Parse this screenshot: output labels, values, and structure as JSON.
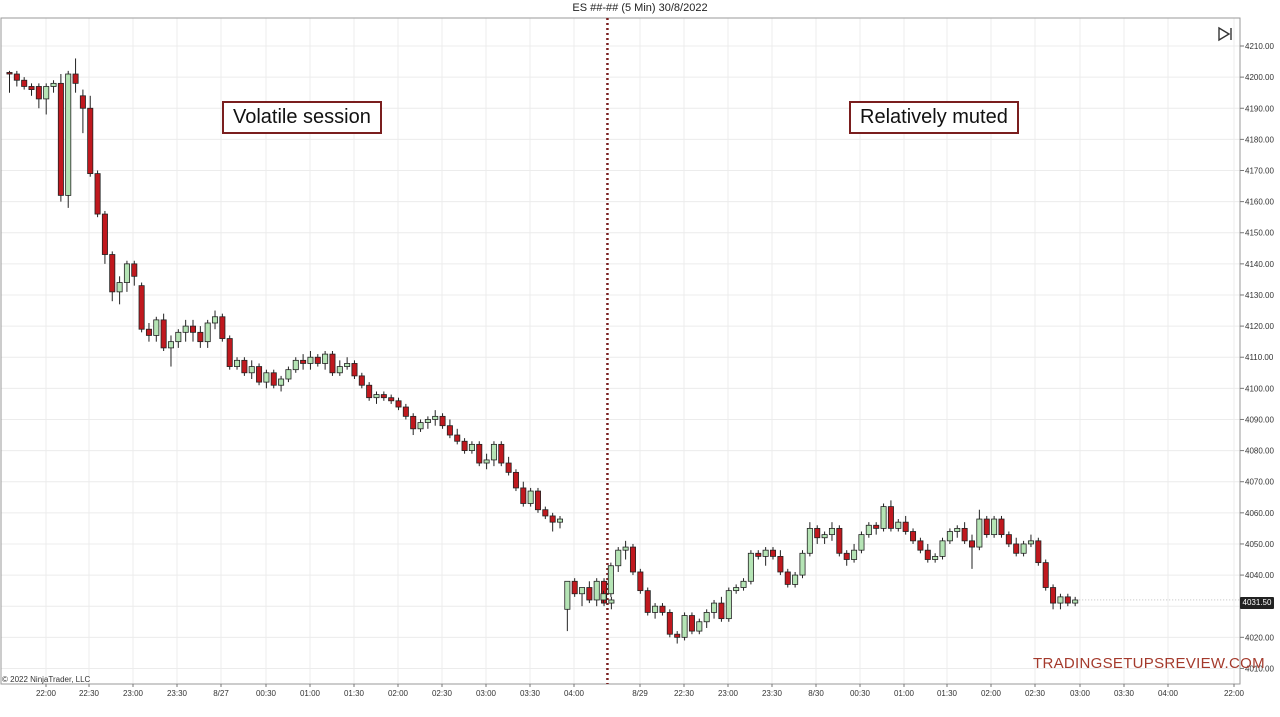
{
  "chart_data": {
    "type": "candlestick",
    "title": "ES ##-## (5 Min)  30/8/2022",
    "y_axis": {
      "range": [
        4005,
        4219
      ],
      "ticks": [
        4010,
        4020,
        4030,
        4040,
        4050,
        4060,
        4070,
        4080,
        4090,
        4100,
        4110,
        4120,
        4130,
        4140,
        4150,
        4160,
        4170,
        4180,
        4190,
        4200,
        4210
      ],
      "tick_format": ".00",
      "position": "right"
    },
    "x_axis": {
      "tick_labels": [
        "22:00",
        "22:30",
        "23:00",
        "23:30",
        "8/27",
        "00:30",
        "01:00",
        "01:30",
        "02:00",
        "02:30",
        "03:00",
        "03:30",
        "04:00",
        "8/29",
        "22:30",
        "23:00",
        "23:30",
        "8/30",
        "00:30",
        "01:00",
        "01:30",
        "02:00",
        "02:30",
        "03:00",
        "03:30",
        "04:00",
        "22:00"
      ]
    },
    "grid": true,
    "session_break_after_bar": 83,
    "up_color": "#b5e4b5",
    "down_color": "#c0181e",
    "candles": [
      [
        4201.5,
        4202,
        4195,
        4201
      ],
      [
        4201,
        4202,
        4197,
        4199
      ],
      [
        4199,
        4200,
        4196,
        4197
      ],
      [
        4197,
        4198,
        4194,
        4196
      ],
      [
        4197,
        4198,
        4190,
        4193
      ],
      [
        4193,
        4198,
        4188,
        4197
      ],
      [
        4197,
        4199,
        4195,
        4198
      ],
      [
        4198,
        4201,
        4160,
        4162
      ],
      [
        4162,
        4202,
        4158,
        4201
      ],
      [
        4201,
        4206,
        4195,
        4198
      ],
      [
        4194,
        4196,
        4182,
        4190
      ],
      [
        4190,
        4194,
        4168,
        4169
      ],
      [
        4169,
        4170,
        4155,
        4156
      ],
      [
        4156,
        4157,
        4140,
        4143
      ],
      [
        4143,
        4144,
        4128,
        4131
      ],
      [
        4131,
        4136,
        4127,
        4134
      ],
      [
        4134,
        4141,
        4131,
        4140
      ],
      [
        4140,
        4141,
        4133,
        4136
      ],
      [
        4133,
        4134,
        4118,
        4119
      ],
      [
        4119,
        4121,
        4115,
        4117
      ],
      [
        4117,
        4123,
        4115,
        4122
      ],
      [
        4122,
        4124,
        4112,
        4113
      ],
      [
        4113,
        4117,
        4107,
        4115
      ],
      [
        4115,
        4119,
        4113,
        4118
      ],
      [
        4118,
        4122,
        4115,
        4120
      ],
      [
        4120,
        4122,
        4115,
        4118
      ],
      [
        4118,
        4120,
        4113,
        4115
      ],
      [
        4115,
        4122,
        4113,
        4121
      ],
      [
        4121,
        4125,
        4119,
        4123
      ],
      [
        4123,
        4124,
        4115,
        4116
      ],
      [
        4116,
        4117,
        4106,
        4107
      ],
      [
        4107,
        4110,
        4106,
        4109
      ],
      [
        4109,
        4110,
        4104,
        4105
      ],
      [
        4105,
        4109,
        4103,
        4107
      ],
      [
        4107,
        4108,
        4101,
        4102
      ],
      [
        4102,
        4106,
        4100,
        4105
      ],
      [
        4105,
        4106,
        4100,
        4101
      ],
      [
        4101,
        4104,
        4099,
        4103
      ],
      [
        4103,
        4107,
        4102,
        4106
      ],
      [
        4106,
        4110,
        4105,
        4109
      ],
      [
        4109,
        4111,
        4106,
        4108
      ],
      [
        4108,
        4112,
        4106,
        4110
      ],
      [
        4110,
        4111,
        4107,
        4108
      ],
      [
        4108,
        4112,
        4106,
        4111
      ],
      [
        4111,
        4112,
        4104,
        4105
      ],
      [
        4105,
        4109,
        4104,
        4107
      ],
      [
        4107,
        4110,
        4106,
        4108
      ],
      [
        4108,
        4109,
        4103,
        4104
      ],
      [
        4104,
        4105,
        4100,
        4101
      ],
      [
        4101,
        4102,
        4096,
        4097
      ],
      [
        4097,
        4099,
        4095,
        4098
      ],
      [
        4098,
        4099,
        4096,
        4097
      ],
      [
        4097,
        4098,
        4095,
        4096
      ],
      [
        4096,
        4097,
        4093,
        4094
      ],
      [
        4094,
        4095,
        4090,
        4091
      ],
      [
        4091,
        4092,
        4085,
        4087
      ],
      [
        4087,
        4090,
        4086,
        4089
      ],
      [
        4089,
        4091,
        4087,
        4090
      ],
      [
        4090,
        4093,
        4088,
        4091
      ],
      [
        4091,
        4092,
        4087,
        4088
      ],
      [
        4088,
        4090,
        4084,
        4085
      ],
      [
        4085,
        4087,
        4082,
        4083
      ],
      [
        4083,
        4084,
        4079,
        4080
      ],
      [
        4080,
        4083,
        4079,
        4082
      ],
      [
        4082,
        4083,
        4075,
        4076
      ],
      [
        4076,
        4079,
        4074,
        4077
      ],
      [
        4077,
        4083,
        4075,
        4082
      ],
      [
        4082,
        4083,
        4075,
        4076
      ],
      [
        4076,
        4078,
        4072,
        4073
      ],
      [
        4073,
        4074,
        4067,
        4068
      ],
      [
        4068,
        4070,
        4062,
        4063
      ],
      [
        4063,
        4068,
        4062,
        4067
      ],
      [
        4067,
        4068,
        4060,
        4061
      ],
      [
        4061,
        4062,
        4058,
        4059
      ],
      [
        4059,
        4060,
        4054,
        4057
      ],
      [
        4057,
        4059,
        4055,
        4058
      ],
      [
        4029,
        4038,
        4022,
        4038
      ],
      [
        4038,
        4039,
        4033,
        4034
      ],
      [
        4034,
        4036,
        4030,
        4036
      ],
      [
        4036,
        4038,
        4031,
        4032
      ],
      [
        4032,
        4039,
        4030,
        4038
      ],
      [
        4038,
        4039,
        4030,
        4031
      ],
      [
        4031,
        4033,
        4029,
        4032
      ],
      [
        4032,
        4035,
        4031,
        4034
      ],
      [
        4034,
        4044,
        4033,
        4043
      ],
      [
        4043,
        4049,
        4041,
        4048
      ],
      [
        4048,
        4051,
        4045,
        4049
      ],
      [
        4049,
        4050,
        4040,
        4041
      ],
      [
        4041,
        4042,
        4034,
        4035
      ],
      [
        4035,
        4036,
        4027,
        4028
      ],
      [
        4028,
        4031,
        4026,
        4030
      ],
      [
        4030,
        4031,
        4027,
        4028
      ],
      [
        4028,
        4029,
        4020,
        4021
      ],
      [
        4021,
        4022,
        4018,
        4020
      ],
      [
        4020,
        4028,
        4019,
        4027
      ],
      [
        4027,
        4028,
        4021,
        4022
      ],
      [
        4022,
        4026,
        4021,
        4025
      ],
      [
        4025,
        4029,
        4023,
        4028
      ],
      [
        4028,
        4032,
        4026,
        4031
      ],
      [
        4031,
        4033,
        4025,
        4026
      ],
      [
        4026,
        4036,
        4025,
        4035
      ],
      [
        4035,
        4037,
        4034,
        4036
      ],
      [
        4036,
        4039,
        4035,
        4038
      ],
      [
        4038,
        4048,
        4037,
        4047
      ],
      [
        4047,
        4048,
        4045,
        4046
      ],
      [
        4046,
        4049,
        4043,
        4048
      ],
      [
        4048,
        4049,
        4045,
        4046
      ],
      [
        4046,
        4048,
        4040,
        4041
      ],
      [
        4041,
        4042,
        4036,
        4037
      ],
      [
        4037,
        4041,
        4036,
        4040
      ],
      [
        4040,
        4048,
        4039,
        4047
      ],
      [
        4047,
        4057,
        4046,
        4055
      ],
      [
        4055,
        4056,
        4050,
        4052
      ],
      [
        4052,
        4054,
        4050,
        4053
      ],
      [
        4053,
        4057,
        4051,
        4055
      ],
      [
        4055,
        4056,
        4046,
        4047
      ],
      [
        4047,
        4048,
        4043,
        4045
      ],
      [
        4045,
        4050,
        4044,
        4048
      ],
      [
        4048,
        4054,
        4047,
        4053
      ],
      [
        4053,
        4057,
        4052,
        4056
      ],
      [
        4056,
        4057,
        4053,
        4055
      ],
      [
        4055,
        4063,
        4054,
        4062
      ],
      [
        4062,
        4064,
        4054,
        4055
      ],
      [
        4055,
        4058,
        4054,
        4057
      ],
      [
        4057,
        4059,
        4053,
        4054
      ],
      [
        4054,
        4055,
        4050,
        4051
      ],
      [
        4051,
        4052,
        4047,
        4048
      ],
      [
        4048,
        4050,
        4044,
        4045
      ],
      [
        4045,
        4047,
        4044,
        4046
      ],
      [
        4046,
        4052,
        4045,
        4051
      ],
      [
        4051,
        4055,
        4050,
        4054
      ],
      [
        4054,
        4056,
        4052,
        4055
      ],
      [
        4055,
        4057,
        4050,
        4051
      ],
      [
        4051,
        4053,
        4042,
        4049
      ],
      [
        4049,
        4061,
        4048,
        4058
      ],
      [
        4058,
        4059,
        4052,
        4053
      ],
      [
        4053,
        4059,
        4052,
        4058
      ],
      [
        4058,
        4059,
        4052,
        4053
      ],
      [
        4053,
        4054,
        4049,
        4050
      ],
      [
        4050,
        4052,
        4046,
        4047
      ],
      [
        4047,
        4051,
        4046,
        4050
      ],
      [
        4050,
        4053,
        4049,
        4051
      ],
      [
        4051,
        4052,
        4043,
        4044
      ],
      [
        4044,
        4045,
        4035,
        4036
      ],
      [
        4036,
        4037,
        4029,
        4031
      ],
      [
        4031,
        4034,
        4029,
        4033
      ],
      [
        4033,
        4034,
        4030,
        4031
      ],
      [
        4031,
        4033,
        4030,
        4032
      ]
    ],
    "annotations": [
      "Volatile session",
      "Relatively muted"
    ]
  },
  "last_price_label": "4031.50",
  "copyright": "© 2022 NinjaTrader, LLC",
  "watermark": "TRADINGSETUPSREVIEW.COM",
  "icons": {
    "toolbar": "skip-to-end-icon"
  }
}
